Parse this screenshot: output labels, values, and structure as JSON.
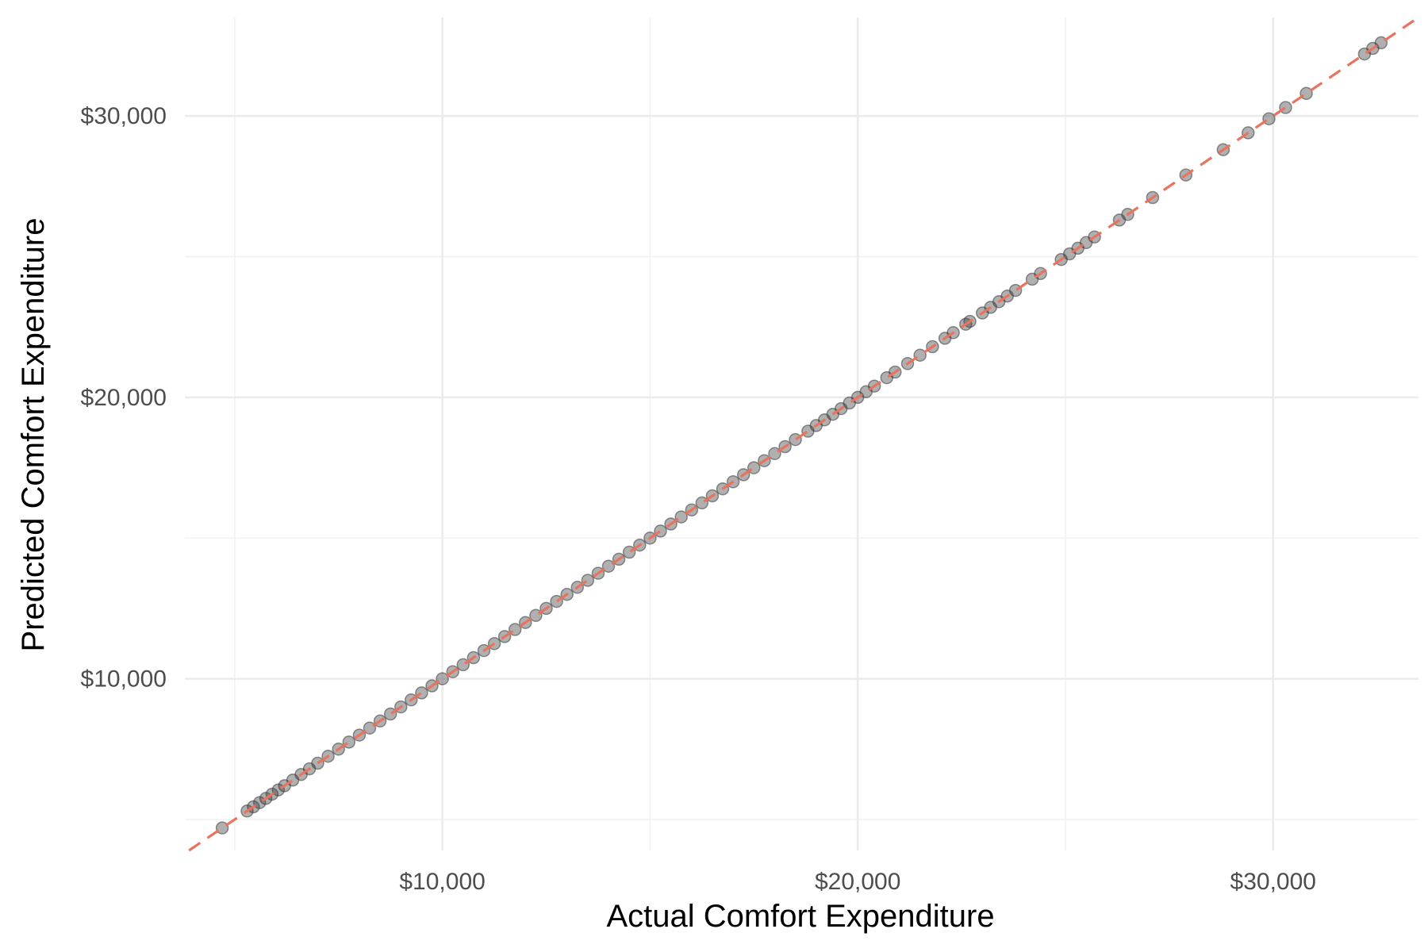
{
  "chart_data": {
    "type": "scatter",
    "title": "",
    "xlabel": "Actual Comfort Expenditure",
    "ylabel": "Predicted Comfort Expenditure",
    "xlim": [
      3800,
      33500
    ],
    "ylim": [
      3900,
      33500
    ],
    "x_major_ticks": [
      10000,
      20000,
      30000
    ],
    "x_minor_ticks": [
      5000,
      15000,
      25000
    ],
    "y_major_ticks": [
      10000,
      20000,
      30000
    ],
    "y_minor_ticks": [
      5000,
      15000,
      25000
    ],
    "x_tick_labels": [
      "$10,000",
      "$20,000",
      "$30,000"
    ],
    "y_tick_labels": [
      "$10,000",
      "$20,000",
      "$30,000"
    ],
    "grid": true,
    "legend": "none",
    "reference_line": {
      "type": "identity",
      "description": "y = x",
      "color": "#E8735F",
      "style": "dashed"
    },
    "point_color": "#3a3a3a",
    "point_opacity": 0.4,
    "series": [
      {
        "points": [
          [
            4700,
            4700
          ],
          [
            5300,
            5300
          ],
          [
            5450,
            5450
          ],
          [
            5600,
            5600
          ],
          [
            5750,
            5750
          ],
          [
            5900,
            5900
          ],
          [
            6050,
            6050
          ],
          [
            6200,
            6200
          ],
          [
            6400,
            6400
          ],
          [
            6600,
            6600
          ],
          [
            6800,
            6800
          ],
          [
            7000,
            7000
          ],
          [
            7250,
            7250
          ],
          [
            7500,
            7500
          ],
          [
            7750,
            7750
          ],
          [
            8000,
            8000
          ],
          [
            8250,
            8250
          ],
          [
            8500,
            8500
          ],
          [
            8750,
            8750
          ],
          [
            9000,
            9000
          ],
          [
            9250,
            9250
          ],
          [
            9500,
            9500
          ],
          [
            9750,
            9750
          ],
          [
            10000,
            10000
          ],
          [
            10250,
            10250
          ],
          [
            10500,
            10500
          ],
          [
            10750,
            10750
          ],
          [
            11000,
            11000
          ],
          [
            11250,
            11250
          ],
          [
            11500,
            11500
          ],
          [
            11750,
            11750
          ],
          [
            12000,
            12000
          ],
          [
            12250,
            12250
          ],
          [
            12500,
            12500
          ],
          [
            12750,
            12750
          ],
          [
            13000,
            13000
          ],
          [
            13250,
            13250
          ],
          [
            13500,
            13500
          ],
          [
            13750,
            13750
          ],
          [
            14000,
            14000
          ],
          [
            14250,
            14250
          ],
          [
            14500,
            14500
          ],
          [
            14750,
            14750
          ],
          [
            15000,
            15000
          ],
          [
            15250,
            15250
          ],
          [
            15500,
            15500
          ],
          [
            15750,
            15750
          ],
          [
            16000,
            16000
          ],
          [
            16250,
            16250
          ],
          [
            16500,
            16500
          ],
          [
            16750,
            16750
          ],
          [
            17000,
            17000
          ],
          [
            17250,
            17250
          ],
          [
            17500,
            17500
          ],
          [
            17750,
            17750
          ],
          [
            18000,
            18000
          ],
          [
            18250,
            18250
          ],
          [
            18500,
            18500
          ],
          [
            18800,
            18800
          ],
          [
            19000,
            19000
          ],
          [
            19200,
            19200
          ],
          [
            19400,
            19400
          ],
          [
            19600,
            19600
          ],
          [
            19800,
            19800
          ],
          [
            20000,
            20000
          ],
          [
            20200,
            20200
          ],
          [
            20400,
            20400
          ],
          [
            20700,
            20700
          ],
          [
            20900,
            20900
          ],
          [
            21200,
            21200
          ],
          [
            21500,
            21500
          ],
          [
            21800,
            21800
          ],
          [
            22100,
            22100
          ],
          [
            22300,
            22300
          ],
          [
            22600,
            22600
          ],
          [
            22700,
            22700
          ],
          [
            23000,
            23000
          ],
          [
            23200,
            23200
          ],
          [
            23400,
            23400
          ],
          [
            23600,
            23600
          ],
          [
            23800,
            23800
          ],
          [
            24200,
            24200
          ],
          [
            24400,
            24400
          ],
          [
            24900,
            24900
          ],
          [
            25100,
            25100
          ],
          [
            25300,
            25300
          ],
          [
            25500,
            25500
          ],
          [
            25700,
            25700
          ],
          [
            26300,
            26300
          ],
          [
            26500,
            26500
          ],
          [
            27100,
            27100
          ],
          [
            27900,
            27900
          ],
          [
            28800,
            28800
          ],
          [
            29400,
            29400
          ],
          [
            29900,
            29900
          ],
          [
            30300,
            30300
          ],
          [
            30800,
            30800
          ],
          [
            32200,
            32200
          ],
          [
            32400,
            32400
          ],
          [
            32600,
            32600
          ]
        ]
      }
    ]
  }
}
